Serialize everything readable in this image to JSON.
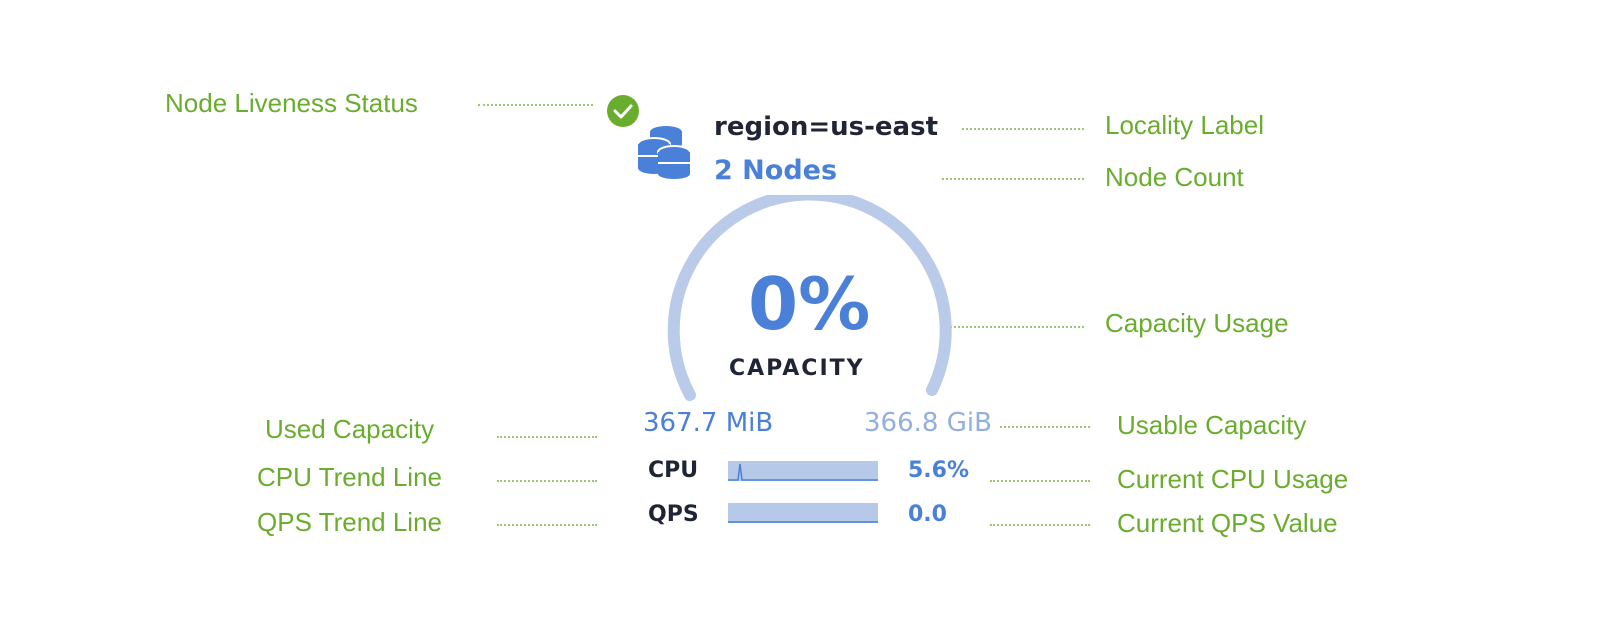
{
  "annotations": {
    "liveness": "Node Liveness Status",
    "locality": "Locality Label",
    "node_count": "Node Count",
    "capacity_usage": "Capacity Usage",
    "used_capacity": "Used Capacity",
    "usable_capacity": "Usable Capacity",
    "cpu_trend": "CPU Trend Line",
    "current_cpu": "Current CPU Usage",
    "qps_trend": "QPS Trend Line",
    "current_qps": "Current QPS Value"
  },
  "node": {
    "status": "live",
    "locality": "region=us-east",
    "node_count": "2 Nodes",
    "capacity_percent": "0%",
    "capacity_label": "CAPACITY",
    "capacity_fraction": 0.001,
    "used": "367.7 MiB",
    "usable": "366.8 GiB",
    "cpu_label": "CPU",
    "cpu_value": "5.6%",
    "qps_label": "QPS",
    "qps_value": "0.0"
  },
  "colors": {
    "annotation": "#6aad2e",
    "accent": "#4a80d8",
    "gauge": "#b9cbe9",
    "status_ok": "#6aad2e"
  }
}
